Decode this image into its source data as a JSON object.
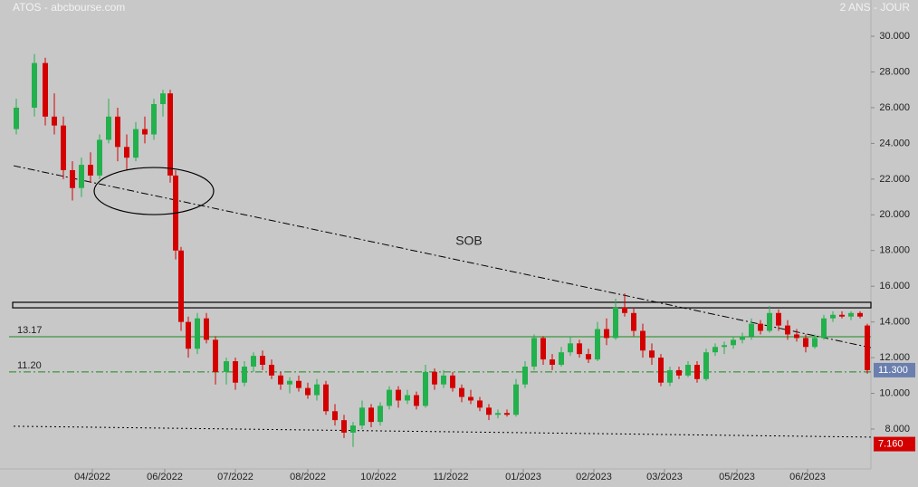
{
  "chart_data": {
    "type": "candlestick",
    "title": "ATOS - abcbourse.com",
    "subtitle": "2 ANS - JOUR",
    "up_color": "#22b14c",
    "down_color": "#d40000",
    "xlim": [
      -9,
      472
    ],
    "xticks": [
      {
        "value": 42,
        "label": "04/2022"
      },
      {
        "value": 82,
        "label": "06/2022"
      },
      {
        "value": 121,
        "label": "07/2022"
      },
      {
        "value": 161,
        "label": "08/2022"
      },
      {
        "value": 200,
        "label": "10/2022"
      },
      {
        "value": 240,
        "label": "11/2022"
      },
      {
        "value": 280,
        "label": "01/2023"
      },
      {
        "value": 319,
        "label": "02/2023"
      },
      {
        "value": 358,
        "label": "03/2023"
      },
      {
        "value": 398,
        "label": "05/2023"
      },
      {
        "value": 437,
        "label": "06/2023"
      }
    ],
    "ylim": [
      5.77,
      32.03
    ],
    "yticks": [
      {
        "value": 8,
        "label": "8.000"
      },
      {
        "value": 10,
        "label": "10.000"
      },
      {
        "value": 12,
        "label": "12.000"
      },
      {
        "value": 14,
        "label": "14.000"
      },
      {
        "value": 16,
        "label": "16.000"
      },
      {
        "value": 18,
        "label": "18.000"
      },
      {
        "value": 20,
        "label": "20.000"
      },
      {
        "value": 22,
        "label": "22.000"
      },
      {
        "value": 24,
        "label": "24.000"
      },
      {
        "value": 26,
        "label": "26.000"
      },
      {
        "value": 28,
        "label": "28.000"
      },
      {
        "value": 30,
        "label": "30.000"
      }
    ],
    "x": [
      0,
      10,
      16,
      21,
      26,
      31,
      36,
      41,
      46,
      51,
      56,
      61,
      66,
      71,
      76,
      81,
      85,
      88,
      91,
      95,
      100,
      105,
      110,
      116,
      121,
      126,
      131,
      136,
      141,
      146,
      151,
      156,
      161,
      166,
      171,
      176,
      181,
      186,
      191,
      196,
      201,
      206,
      211,
      216,
      221,
      226,
      231,
      236,
      241,
      246,
      251,
      256,
      261,
      266,
      271,
      276,
      281,
      286,
      291,
      296,
      301,
      306,
      311,
      316,
      321,
      326,
      331,
      336,
      341,
      346,
      351,
      356,
      361,
      366,
      371,
      376,
      381,
      386,
      391,
      396,
      401,
      406,
      411,
      416,
      421,
      426,
      431,
      436,
      441,
      446,
      451,
      456,
      461,
      466,
      470
    ],
    "open": [
      24.8,
      26,
      28.5,
      25.5,
      25,
      22.5,
      21.5,
      22.8,
      22.2,
      24.2,
      25.5,
      23.8,
      23.2,
      24.8,
      24.5,
      26.2,
      26.8,
      22.2,
      18,
      14,
      12.5,
      14.2,
      13,
      11.2,
      11.8,
      10.6,
      11.5,
      12.1,
      11.6,
      11,
      10.5,
      10.7,
      10.3,
      9.9,
      10.5,
      9,
      8.5,
      7.8,
      8.2,
      9.2,
      8.4,
      9.3,
      10.2,
      9.6,
      9.9,
      9.3,
      11.2,
      10.5,
      11,
      10.3,
      9.8,
      9.6,
      9.2,
      8.8,
      8.9,
      8.8,
      10.5,
      11.5,
      13.1,
      11.9,
      11.6,
      12.3,
      12.8,
      12.2,
      11.9,
      13.6,
      13.1,
      14.8,
      14.5,
      13.5,
      12.4,
      12,
      10.6,
      11.3,
      11,
      11.6,
      10.8,
      12.3,
      12.6,
      12.7,
      13,
      13.2,
      13.9,
      13.5,
      14.5,
      13.8,
      13.3,
      13.1,
      12.6,
      13.1,
      14.2,
      14.4,
      14.3,
      14.5,
      13.8
    ],
    "high": [
      26.5,
      29,
      28.8,
      26.8,
      25.5,
      23,
      23.2,
      23.5,
      24.5,
      26.5,
      26,
      24.5,
      25.2,
      25.5,
      26.5,
      27,
      27,
      22.5,
      18.2,
      14.3,
      14.5,
      14.5,
      13.2,
      12,
      12,
      11.8,
      12.3,
      12.4,
      11.9,
      11.2,
      10.9,
      11,
      10.6,
      10.8,
      10.7,
      9.4,
      8.8,
      8.4,
      9.6,
      9.4,
      9.5,
      10.4,
      10.4,
      10.2,
      10.1,
      11.6,
      11.4,
      11.3,
      11.2,
      10.5,
      10.2,
      9.8,
      9.4,
      9.1,
      9.1,
      10.8,
      11.8,
      13.3,
      13.2,
      12.2,
      12.6,
      13.2,
      13,
      12.5,
      14,
      14.2,
      15.3,
      15.6,
      14.8,
      13.9,
      12.8,
      12.2,
      11.5,
      11.5,
      11.8,
      11.8,
      12.5,
      12.8,
      12.9,
      13.2,
      13.4,
      14.2,
      14.1,
      14.9,
      14.7,
      14.1,
      13.6,
      13.3,
      13.3,
      14.4,
      14.6,
      14.6,
      14.6,
      14.6,
      13.9
    ],
    "low": [
      24.5,
      25.5,
      25,
      24.5,
      22,
      20.8,
      21,
      21.8,
      22,
      24,
      23,
      22.5,
      23,
      24,
      24.2,
      25.5,
      21.8,
      17.5,
      13.5,
      12,
      12.2,
      12.8,
      10.5,
      10.5,
      10.2,
      10.4,
      11.2,
      11.3,
      10.8,
      10.2,
      10,
      10.1,
      9.7,
      9.6,
      8.8,
      8.2,
      7.5,
      7,
      8,
      8.1,
      8.2,
      9.1,
      9.2,
      9.4,
      9.1,
      9.2,
      10.2,
      10.3,
      10.1,
      9.5,
      9.4,
      9,
      8.5,
      8.6,
      8.7,
      8.7,
      10.3,
      11.3,
      11.6,
      11.3,
      11.5,
      12.1,
      12,
      11.7,
      11.8,
      12.7,
      13,
      14.3,
      13.2,
      12,
      11.6,
      10.4,
      10.4,
      10.8,
      10.9,
      10.6,
      10.7,
      12.1,
      12.2,
      12.5,
      12.8,
      13,
      13.3,
      13.4,
      13.5,
      13,
      12.9,
      12.3,
      12.5,
      13,
      14,
      14.2,
      14.1,
      14.2,
      11.1
    ],
    "close": [
      26,
      28.5,
      25.5,
      25,
      22.5,
      21.5,
      22.8,
      22.2,
      24.2,
      25.5,
      23.8,
      23.2,
      24.8,
      24.5,
      26.2,
      26.8,
      22.2,
      18,
      14,
      12.5,
      14.2,
      13,
      11.2,
      11.8,
      10.6,
      11.5,
      12.1,
      11.6,
      11,
      10.5,
      10.7,
      10.3,
      9.9,
      10.5,
      9,
      8.5,
      7.8,
      8.2,
      9.2,
      8.4,
      9.3,
      10.2,
      9.6,
      9.9,
      9.3,
      11.2,
      10.5,
      11,
      10.3,
      9.8,
      9.6,
      9.2,
      8.8,
      8.9,
      8.8,
      10.5,
      11.5,
      13.1,
      11.9,
      11.6,
      12.3,
      12.8,
      12.2,
      11.9,
      13.6,
      13.1,
      14.8,
      14.5,
      13.5,
      12.4,
      12,
      10.6,
      11.3,
      11,
      11.6,
      10.8,
      12.3,
      12.6,
      12.7,
      13,
      13.2,
      13.9,
      13.5,
      14.5,
      13.8,
      13.3,
      13.1,
      12.6,
      13.1,
      14.2,
      14.4,
      14.3,
      14.5,
      14.3,
      11.3
    ],
    "trendlines": [
      {
        "x": [
          -1.5,
          472
        ],
        "y": [
          22.75,
          12.56
        ],
        "style": "dashdot",
        "color": "#000000"
      },
      {
        "x": [
          -1.5,
          472
        ],
        "y": [
          8.16,
          7.55
        ],
        "style": "dotted",
        "color": "#000000"
      }
    ],
    "hlines": [
      {
        "value": 13.17,
        "style": "solid",
        "color": "#1a8a1a"
      },
      {
        "value": 11.2,
        "label": "11.20",
        "style": "dashdot",
        "color": "#1a8a1a"
      }
    ],
    "zone": {
      "y": [
        14.79,
        15.1
      ]
    },
    "ellipse": {
      "x": 76,
      "y": 21.33
    },
    "annotation": {
      "text": "SOB",
      "x": 250,
      "y": 18.5
    },
    "price_tags": [
      {
        "value": 11.3,
        "label": "11.300",
        "color": "#6a7fae"
      },
      {
        "value": 7.16,
        "label": "7.160",
        "color": "#d40000"
      }
    ]
  }
}
